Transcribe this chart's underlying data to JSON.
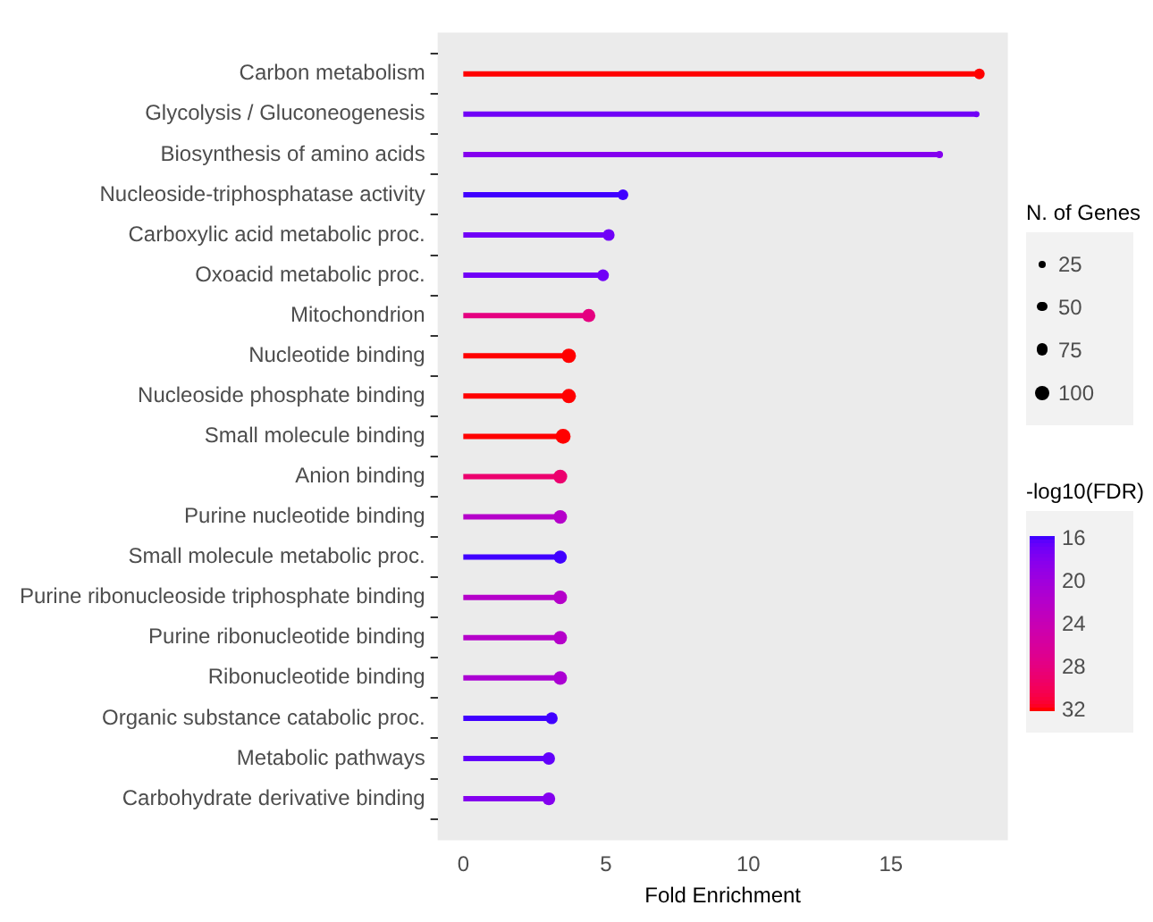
{
  "chart_data": {
    "type": "lollipop",
    "orientation": "horizontal",
    "xlabel": "Fold Enrichment",
    "clabel": "-log10(FDR)",
    "legend_title": "N. of Genes",
    "categories": [
      "Carbon metabolism",
      "Glycolysis / Gluconeogenesis",
      "Biosynthesis of amino acids",
      "Nucleoside-triphosphatase activity",
      "Carboxylic acid metabolic proc.",
      "Oxoacid metabolic proc.",
      "Mitochondrion",
      "Nucleotide binding",
      "Nucleoside phosphate binding",
      "Small molecule binding",
      "Anion binding",
      "Purine nucleotide binding",
      "Small molecule metabolic proc.",
      "Purine ribonucleoside triphosphate binding",
      "Purine ribonucleotide binding",
      "Ribonucleotide binding",
      "Organic substance catabolic proc.",
      "Metabolic pathways",
      "Carbohydrate derivative binding"
    ],
    "values": [
      18.1,
      18.0,
      16.7,
      5.6,
      5.1,
      4.9,
      4.4,
      3.7,
      3.7,
      3.5,
      3.4,
      3.4,
      3.4,
      3.4,
      3.4,
      3.4,
      3.1,
      3.0,
      3.0
    ],
    "cvalues": [
      32,
      17,
      18,
      16,
      17,
      17,
      28,
      32,
      32,
      32,
      29,
      22,
      16,
      22,
      22,
      21,
      16,
      16.5,
      18
    ],
    "sizes": [
      56,
      18,
      25,
      56,
      68,
      68,
      85,
      100,
      100,
      110,
      95,
      90,
      85,
      90,
      90,
      90,
      70,
      75,
      80
    ],
    "size_legend": [
      25,
      50,
      75,
      100
    ],
    "clim": [
      16,
      32
    ],
    "cticks": [
      16,
      20,
      24,
      28,
      32
    ],
    "xlim": [
      -0.9,
      19.1
    ],
    "xticks": [
      0,
      5,
      10,
      15
    ],
    "grid": false
  }
}
